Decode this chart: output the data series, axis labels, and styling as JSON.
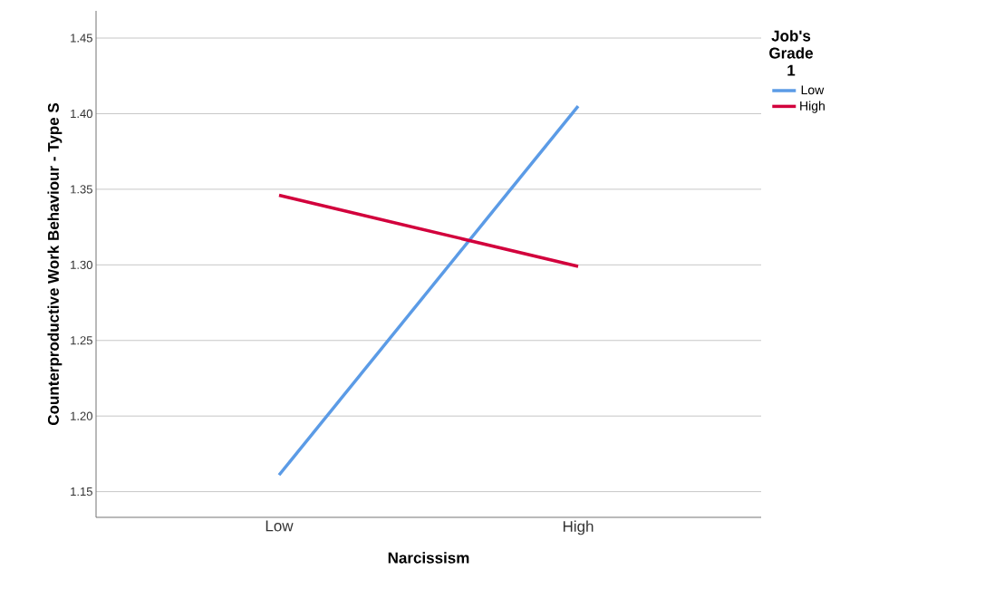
{
  "chart_data": {
    "type": "line",
    "xlabel": "Narcissism",
    "ylabel": "Counterproductive Work Behaviour - Type S",
    "legend_title": "Job's Grade 1",
    "categories": [
      "Low",
      "High"
    ],
    "series": [
      {
        "name": "Low",
        "color": "#5b9be6",
        "values": [
          1.161,
          1.405
        ]
      },
      {
        "name": "High",
        "color": "#d2003c",
        "values": [
          1.346,
          1.299
        ]
      }
    ],
    "ylim": [
      1.133,
      1.468
    ],
    "yticks": [
      {
        "value": 1.15,
        "label": "1.15"
      },
      {
        "value": 1.2,
        "label": "1.20"
      },
      {
        "value": 1.25,
        "label": "1.25"
      },
      {
        "value": 1.3,
        "label": "1.30"
      },
      {
        "value": 1.35,
        "label": "1.35"
      },
      {
        "value": 1.4,
        "label": "1.40"
      },
      {
        "value": 1.45,
        "label": "1.45"
      }
    ],
    "grid": "y",
    "legend": "top right",
    "marker": "none",
    "line_style": "solid"
  }
}
